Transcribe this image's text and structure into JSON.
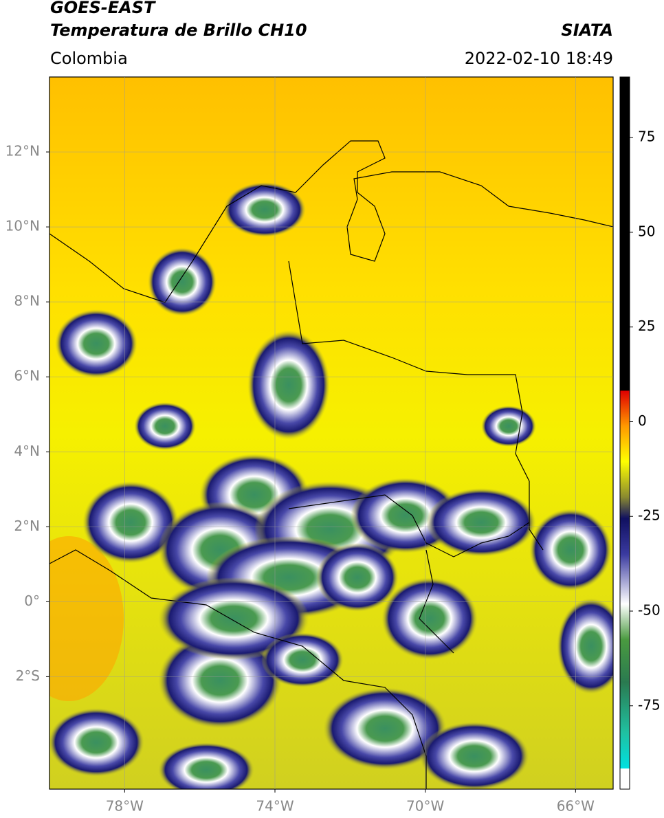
{
  "header": {
    "title": "GOES-EAST",
    "subtitle": "Temperatura de Brillo CH10",
    "source": "SIATA",
    "region": "Colombia",
    "datetime": "2022-02-10 18:49"
  },
  "map": {
    "xlim": [
      -80,
      -65
    ],
    "ylim": [
      -5,
      14
    ],
    "xticks": [
      {
        "value": -78,
        "label": "78°W"
      },
      {
        "value": -74,
        "label": "74°W"
      },
      {
        "value": -70,
        "label": "70°W"
      },
      {
        "value": -66,
        "label": "66°W"
      }
    ],
    "yticks": [
      {
        "value": 12,
        "label": "12°N"
      },
      {
        "value": 10,
        "label": "10°N"
      },
      {
        "value": 8,
        "label": "8°N"
      },
      {
        "value": 6,
        "label": "6°N"
      },
      {
        "value": 4,
        "label": "4°N"
      },
      {
        "value": 2,
        "label": "2°N"
      },
      {
        "value": 0,
        "label": "0°"
      },
      {
        "value": -2,
        "label": "2°S"
      }
    ],
    "grid": true
  },
  "colorbar": {
    "lim": [
      -97,
      91
    ],
    "ticks": [
      75,
      50,
      25,
      0,
      -25,
      -50,
      -75
    ]
  }
}
